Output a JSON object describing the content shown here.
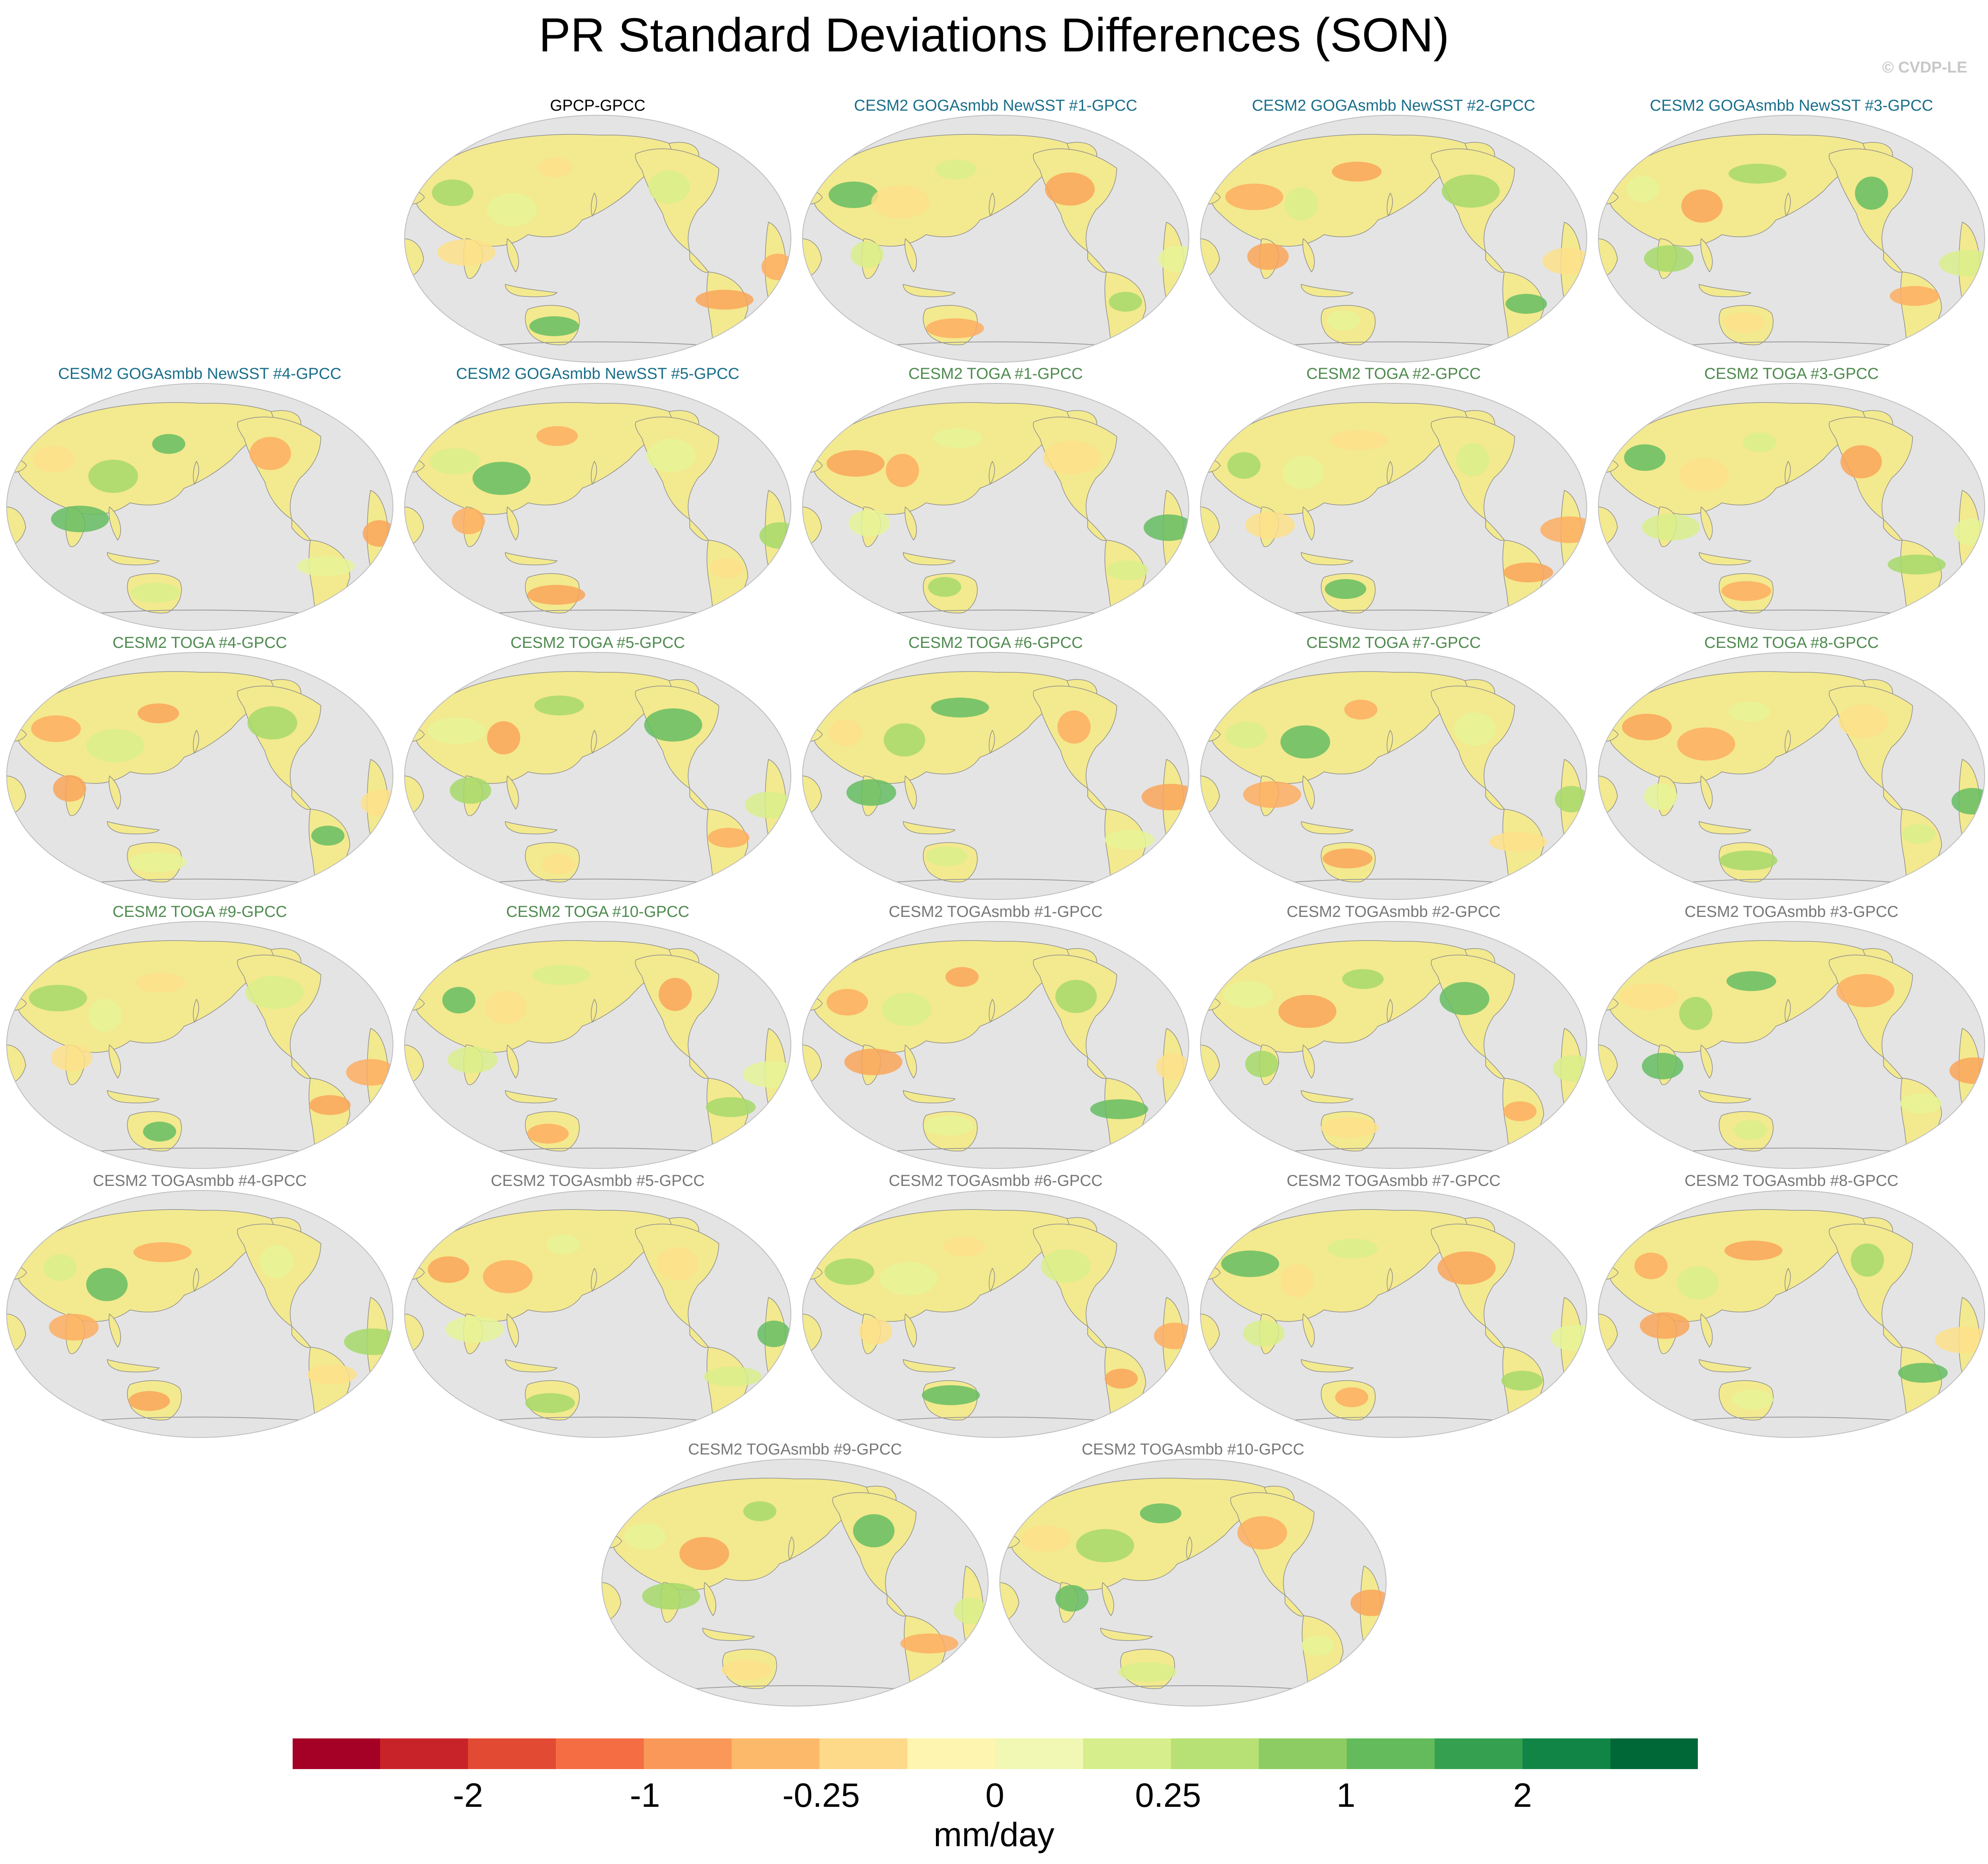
{
  "figure": {
    "title": "PR Standard Deviations Differences (SON)",
    "watermark": "© CVDP-LE"
  },
  "chart_data": {
    "type": "map-panels",
    "title": "PR Standard Deviations Differences (SON)",
    "units": "mm/day",
    "projection": "Robinson (Pacific-centered)",
    "group_colors": {
      "obs": "#000000",
      "goga": "#1a6e8a",
      "toga": "#4f8a4f",
      "togasmbb": "#777777"
    },
    "panels": [
      {
        "title": "GPCP-GPCC",
        "group": "obs"
      },
      {
        "title": "CESM2 GOGAsmbb NewSST #1-GPCC",
        "group": "goga"
      },
      {
        "title": "CESM2 GOGAsmbb NewSST #2-GPCC",
        "group": "goga"
      },
      {
        "title": "CESM2 GOGAsmbb NewSST #3-GPCC",
        "group": "goga"
      },
      {
        "title": "CESM2 GOGAsmbb NewSST #4-GPCC",
        "group": "goga"
      },
      {
        "title": "CESM2 GOGAsmbb NewSST #5-GPCC",
        "group": "goga"
      },
      {
        "title": "CESM2 TOGA #1-GPCC",
        "group": "toga"
      },
      {
        "title": "CESM2 TOGA #2-GPCC",
        "group": "toga"
      },
      {
        "title": "CESM2 TOGA #3-GPCC",
        "group": "toga"
      },
      {
        "title": "CESM2 TOGA #4-GPCC",
        "group": "toga"
      },
      {
        "title": "CESM2 TOGA #5-GPCC",
        "group": "toga"
      },
      {
        "title": "CESM2 TOGA #6-GPCC",
        "group": "toga"
      },
      {
        "title": "CESM2 TOGA #7-GPCC",
        "group": "toga"
      },
      {
        "title": "CESM2 TOGA #8-GPCC",
        "group": "toga"
      },
      {
        "title": "CESM2 TOGA #9-GPCC",
        "group": "toga"
      },
      {
        "title": "CESM2 TOGA #10-GPCC",
        "group": "toga"
      },
      {
        "title": "CESM2 TOGAsmbb #1-GPCC",
        "group": "togasmbb"
      },
      {
        "title": "CESM2 TOGAsmbb #2-GPCC",
        "group": "togasmbb"
      },
      {
        "title": "CESM2 TOGAsmbb #3-GPCC",
        "group": "togasmbb"
      },
      {
        "title": "CESM2 TOGAsmbb #4-GPCC",
        "group": "togasmbb"
      },
      {
        "title": "CESM2 TOGAsmbb #5-GPCC",
        "group": "togasmbb"
      },
      {
        "title": "CESM2 TOGAsmbb #6-GPCC",
        "group": "togasmbb"
      },
      {
        "title": "CESM2 TOGAsmbb #7-GPCC",
        "group": "togasmbb"
      },
      {
        "title": "CESM2 TOGAsmbb #8-GPCC",
        "group": "togasmbb"
      },
      {
        "title": "CESM2 TOGAsmbb #9-GPCC",
        "group": "togasmbb"
      },
      {
        "title": "CESM2 TOGAsmbb #10-GPCC",
        "group": "togasmbb"
      }
    ],
    "colorbar": {
      "label": "mm/day",
      "tick_labels": [
        "-2",
        "-1",
        "-0.25",
        "0",
        "0.25",
        "1",
        "2"
      ],
      "colors": [
        "#a50026",
        "#c9232a",
        "#e34a33",
        "#f46d43",
        "#f99858",
        "#fdb96a",
        "#fdd98a",
        "#fef5b0",
        "#f1f8b3",
        "#d6ee8b",
        "#b7e075",
        "#8ccc62",
        "#63bb5b",
        "#35a150",
        "#108546",
        "#006837"
      ]
    }
  }
}
